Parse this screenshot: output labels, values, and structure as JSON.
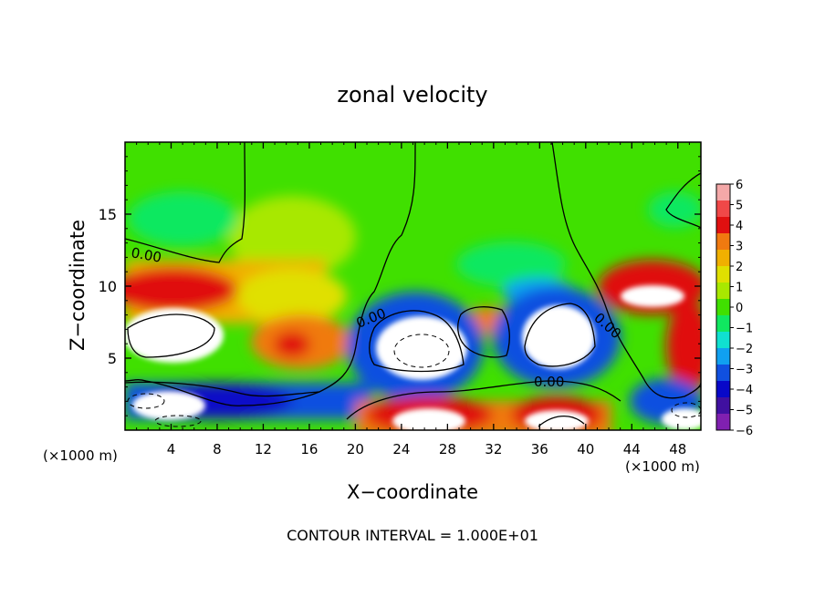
{
  "chart_data": {
    "type": "heatmap",
    "title": "zonal velocity",
    "xlabel": "X−coordinate",
    "ylabel": "Z−coordinate",
    "x_unit_left": "(×1000 m)",
    "x_unit_right": "(×1000 m)",
    "footer": "CONTOUR INTERVAL = 1.000E+01",
    "xlim": [
      0,
      50
    ],
    "ylim": [
      0,
      20
    ],
    "x_ticks": [
      "4",
      "8",
      "12",
      "16",
      "20",
      "24",
      "28",
      "32",
      "36",
      "40",
      "44",
      "48"
    ],
    "x_tick_values": [
      4,
      8,
      12,
      16,
      20,
      24,
      28,
      32,
      36,
      40,
      44,
      48
    ],
    "y_ticks": [
      "5",
      "10",
      "15"
    ],
    "y_tick_values": [
      5,
      10,
      15
    ],
    "contour_labels": [
      "0.00",
      "0.00",
      "0.00",
      "0.00"
    ],
    "colorbar": {
      "ticks": [
        "6",
        "5",
        "4",
        "3",
        "2",
        "1",
        "0",
        "−1",
        "−2",
        "−3",
        "−4",
        "−5",
        "−6"
      ],
      "values": [
        6,
        5,
        4,
        3,
        2,
        1,
        0,
        -1,
        -2,
        -3,
        -4,
        -5,
        -6
      ],
      "colors": [
        "#f4a8a8",
        "#f04848",
        "#e01010",
        "#f07a10",
        "#f0b000",
        "#e0e000",
        "#a8e800",
        "#40e000",
        "#10e860",
        "#10e0d0",
        "#10a0f0",
        "#1050e0",
        "#0808c8",
        "#4010a0",
        "#8020b0"
      ]
    },
    "field_estimates": [
      {
        "region": "upper domain",
        "value": 0
      },
      {
        "region": "left layer z~9-11",
        "value": 4
      },
      {
        "region": "centre blob x~12-18 z~5-8",
        "value": 4
      },
      {
        "region": "low band z~1-4",
        "value": -4
      },
      {
        "region": "white cells (off-scale)",
        "value": -7
      }
    ]
  }
}
